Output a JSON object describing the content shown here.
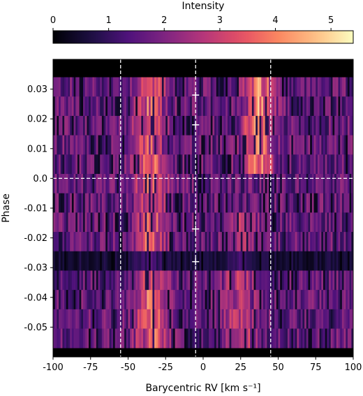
{
  "chart_data": {
    "type": "heatmap",
    "colormap": "magma",
    "colorbar": {
      "label": "Intensity",
      "range": [
        0,
        5.4
      ],
      "ticks": [
        0,
        1,
        2,
        3,
        4,
        5
      ],
      "tick_labels": [
        "0",
        "1",
        "2",
        "3",
        "4",
        "5"
      ]
    },
    "xlabel": "Barycentric RV [km s⁻¹]",
    "ylabel": "Phase",
    "xlim": [
      -100,
      100
    ],
    "ylim": [
      -0.06,
      0.04
    ],
    "xticks": [
      -100,
      -75,
      -50,
      -25,
      0,
      25,
      50,
      75,
      100
    ],
    "xtick_labels": [
      "-100",
      "-75",
      "-50",
      "-25",
      "0",
      "25",
      "50",
      "75",
      "100"
    ],
    "yticks": [
      0.03,
      0.02,
      0.01,
      0.0,
      -0.01,
      -0.02,
      -0.03,
      -0.04,
      -0.05
    ],
    "ytick_labels": [
      "0.03",
      "0.02",
      "0.01",
      "0.0",
      "-0.01",
      "-0.02",
      "-0.03",
      "-0.04",
      "-0.05"
    ],
    "covered_phase_range": [
      -0.057,
      0.034
    ],
    "num_exposures": 14,
    "vertical_dashed_lines_rv": [
      -55,
      -5,
      45
    ],
    "horizontal_dashed_line_phase": 0.0,
    "markers": [
      {
        "rv": -5,
        "phase": 0.028
      },
      {
        "rv": -5,
        "phase": 0.018
      },
      {
        "rv": -5,
        "phase": -0.017
      },
      {
        "rv": -5,
        "phase": -0.028
      }
    ],
    "emission_features": [
      {
        "rv_center": -35,
        "phase_range": [
          -0.057,
          0.034
        ],
        "peak_intensity": 4.2
      },
      {
        "rv_center": 37,
        "phase_range": [
          0.0,
          0.034
        ],
        "peak_intensity": 4.5
      },
      {
        "rv_center": 25,
        "phase_range": [
          -0.057,
          -0.01
        ],
        "peak_intensity": 3.5
      }
    ]
  }
}
